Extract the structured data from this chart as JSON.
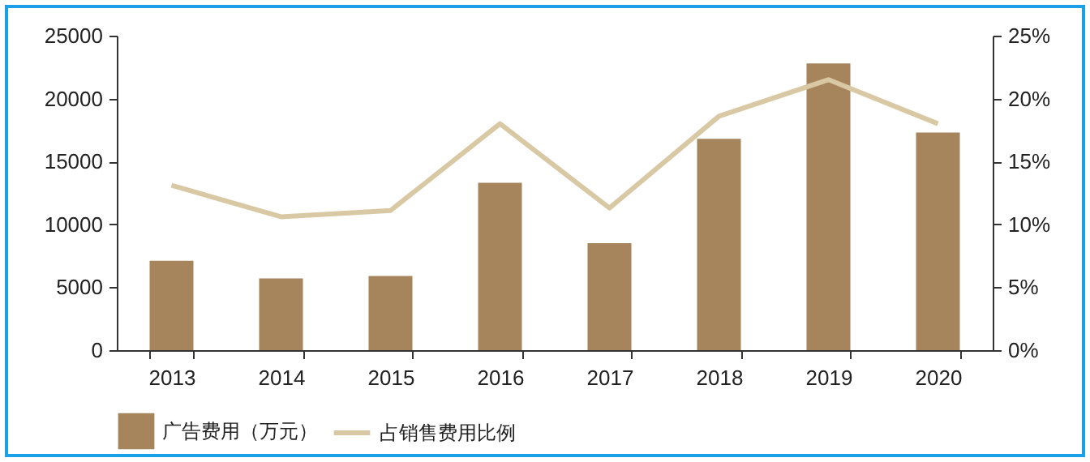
{
  "chart_data": {
    "type": "bar",
    "categories": [
      "2013",
      "2014",
      "2015",
      "2016",
      "2017",
      "2018",
      "2019",
      "2020"
    ],
    "series": [
      {
        "name": "广告费用（万元）",
        "color": "#a6845c",
        "values": [
          7100,
          5700,
          5900,
          13300,
          8500,
          16800,
          22800,
          17300
        ]
      },
      {
        "name": "占销售费用比例",
        "type": "line",
        "axis": "y2",
        "color": "#d9c8a4",
        "values": [
          13.1,
          10.6,
          11.1,
          18.0,
          11.3,
          18.6,
          21.5,
          18.0
        ]
      }
    ],
    "ylim": [
      0,
      25000
    ],
    "yticks": [
      0,
      5000,
      10000,
      15000,
      20000,
      25000
    ],
    "y2lim": [
      0,
      25
    ],
    "y2ticks": [
      {
        "value": 0,
        "label": "0%"
      },
      {
        "value": 5,
        "label": "5%"
      },
      {
        "value": 10,
        "label": "10%"
      },
      {
        "value": 15,
        "label": "15%"
      },
      {
        "value": 20,
        "label": "20%"
      },
      {
        "value": 25,
        "label": "25%"
      }
    ],
    "grid": false,
    "legend": "bottom",
    "marker": "none",
    "line_style": "solid"
  }
}
